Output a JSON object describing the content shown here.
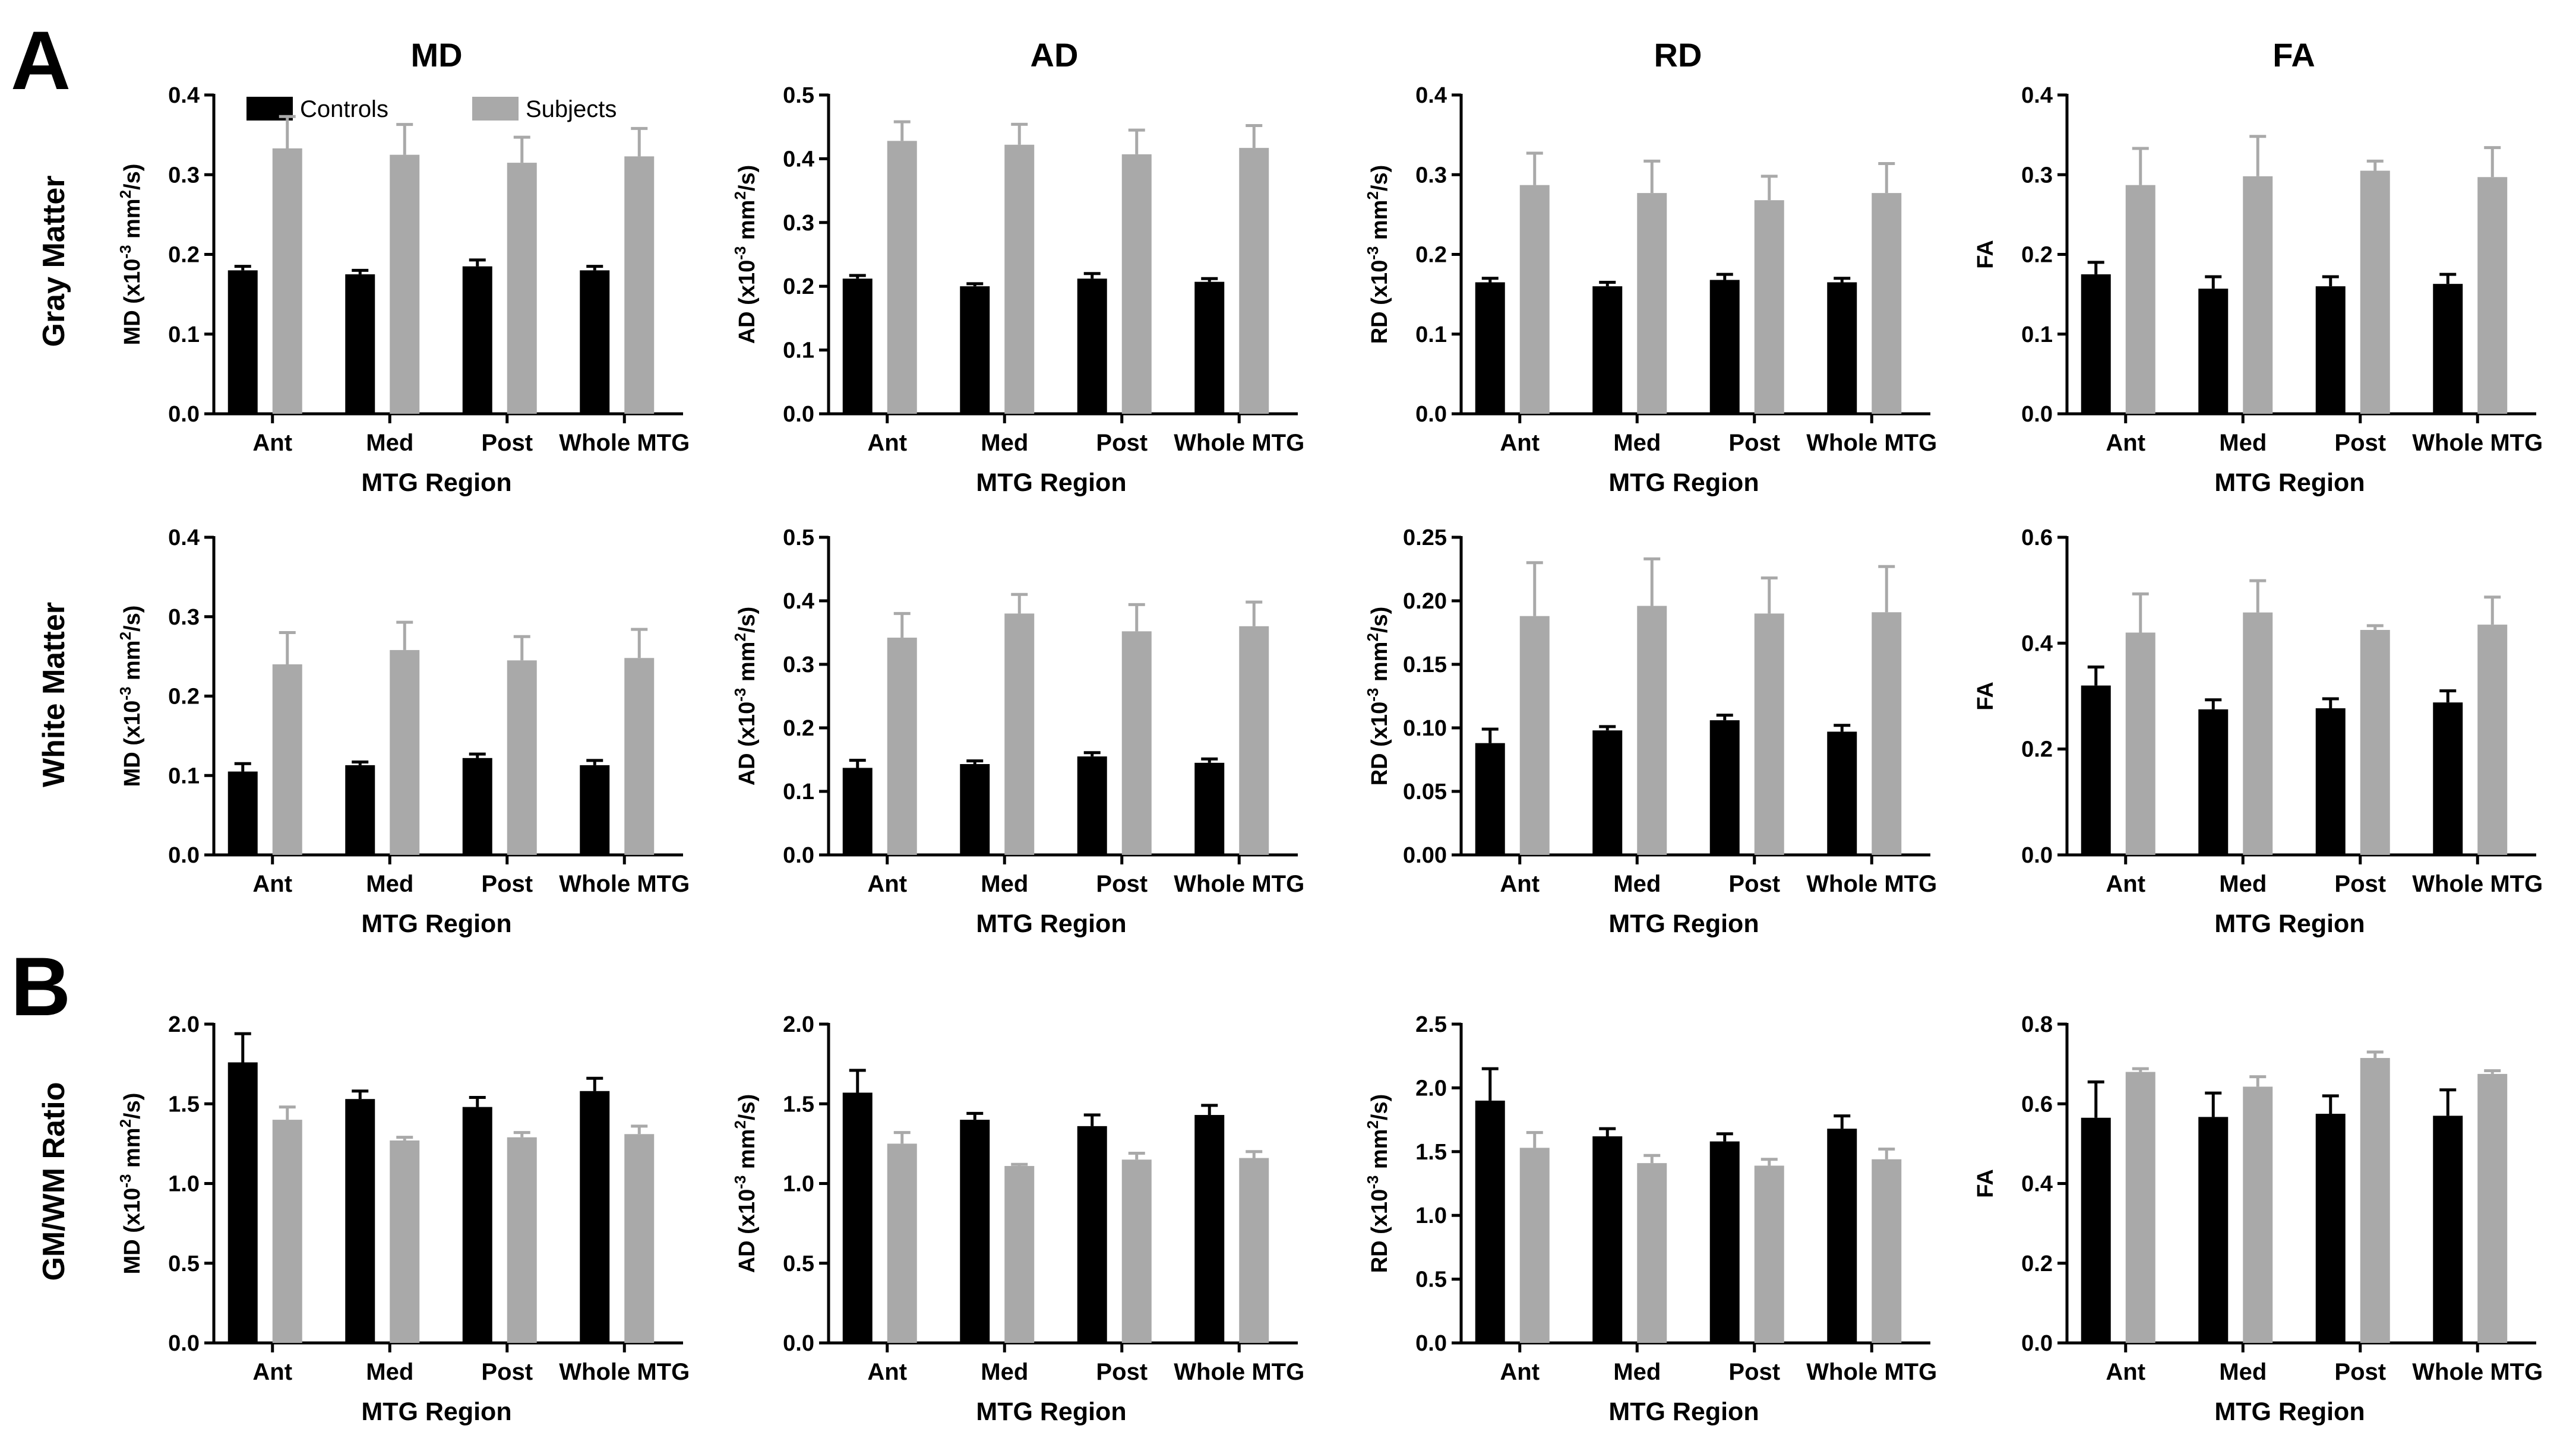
{
  "figure": {
    "panel_labels": [
      "A",
      "B"
    ],
    "column_titles": [
      "MD",
      "AD",
      "RD",
      "FA"
    ],
    "row_titles": [
      "Gray Matter",
      "White Matter",
      "GM/WM Ratio"
    ],
    "legend": [
      {
        "label": "Controls",
        "color": "#000000"
      },
      {
        "label": "Subjects",
        "color": "#a9a9a9"
      }
    ],
    "colors": {
      "controls": "#000000",
      "subjects": "#a9a9a9"
    }
  },
  "chart_data": [
    {
      "type": "bar",
      "row": 0,
      "col": 0,
      "title": "MD",
      "xlabel": "MTG Region",
      "ylabel": "MD (x10^-3 mm^2/s)",
      "categories": [
        "Ant",
        "Med",
        "Post",
        "Whole MTG"
      ],
      "ylim": [
        0,
        0.4
      ],
      "yticks": [
        "0.0",
        "0.1",
        "0.2",
        "0.3",
        "0.4"
      ],
      "ytick_values": [
        0,
        0.1,
        0.2,
        0.3,
        0.4
      ],
      "series": [
        {
          "name": "Controls",
          "values": [
            0.18,
            0.175,
            0.185,
            0.18
          ],
          "errors": [
            0.005,
            0.005,
            0.008,
            0.005
          ]
        },
        {
          "name": "Subjects",
          "values": [
            0.333,
            0.325,
            0.315,
            0.323
          ],
          "errors": [
            0.04,
            0.038,
            0.032,
            0.035
          ]
        }
      ]
    },
    {
      "type": "bar",
      "row": 0,
      "col": 1,
      "title": "AD",
      "xlabel": "MTG Region",
      "ylabel": "AD (x10^-3 mm^2/s)",
      "categories": [
        "Ant",
        "Med",
        "Post",
        "Whole MTG"
      ],
      "ylim": [
        0,
        0.5
      ],
      "yticks": [
        "0.0",
        "0.1",
        "0.2",
        "0.3",
        "0.4",
        "0.5"
      ],
      "ytick_values": [
        0,
        0.1,
        0.2,
        0.3,
        0.4,
        0.5
      ],
      "series": [
        {
          "name": "Controls",
          "values": [
            0.212,
            0.2,
            0.212,
            0.207
          ],
          "errors": [
            0.005,
            0.004,
            0.008,
            0.005
          ]
        },
        {
          "name": "Subjects",
          "values": [
            0.428,
            0.422,
            0.407,
            0.417
          ],
          "errors": [
            0.03,
            0.032,
            0.038,
            0.035
          ]
        }
      ]
    },
    {
      "type": "bar",
      "row": 0,
      "col": 2,
      "title": "RD",
      "xlabel": "MTG Region",
      "ylabel": "RD (x10^-3 mm^2/s)",
      "categories": [
        "Ant",
        "Med",
        "Post",
        "Whole MTG"
      ],
      "ylim": [
        0,
        0.4
      ],
      "yticks": [
        "0.0",
        "0.1",
        "0.2",
        "0.3",
        "0.4"
      ],
      "ytick_values": [
        0,
        0.1,
        0.2,
        0.3,
        0.4
      ],
      "series": [
        {
          "name": "Controls",
          "values": [
            0.165,
            0.16,
            0.168,
            0.165
          ],
          "errors": [
            0.005,
            0.005,
            0.007,
            0.005
          ]
        },
        {
          "name": "Subjects",
          "values": [
            0.287,
            0.277,
            0.268,
            0.277
          ],
          "errors": [
            0.04,
            0.04,
            0.03,
            0.037
          ]
        }
      ]
    },
    {
      "type": "bar",
      "row": 0,
      "col": 3,
      "title": "FA",
      "xlabel": "MTG Region",
      "ylabel": "FA",
      "categories": [
        "Ant",
        "Med",
        "Post",
        "Whole MTG"
      ],
      "ylim": [
        0,
        0.4
      ],
      "yticks": [
        "0.0",
        "0.1",
        "0.2",
        "0.3",
        "0.4"
      ],
      "ytick_values": [
        0,
        0.1,
        0.2,
        0.3,
        0.4
      ],
      "series": [
        {
          "name": "Controls",
          "values": [
            0.175,
            0.157,
            0.16,
            0.163
          ],
          "errors": [
            0.015,
            0.015,
            0.012,
            0.012
          ]
        },
        {
          "name": "Subjects",
          "values": [
            0.287,
            0.298,
            0.305,
            0.297
          ],
          "errors": [
            0.046,
            0.05,
            0.012,
            0.037
          ]
        }
      ]
    },
    {
      "type": "bar",
      "row": 1,
      "col": 0,
      "title": "",
      "xlabel": "MTG Region",
      "ylabel": "MD (x10^-3 mm^2/s)",
      "categories": [
        "Ant",
        "Med",
        "Post",
        "Whole MTG"
      ],
      "ylim": [
        0,
        0.4
      ],
      "yticks": [
        "0.0",
        "0.1",
        "0.2",
        "0.3",
        "0.4"
      ],
      "ytick_values": [
        0,
        0.1,
        0.2,
        0.3,
        0.4
      ],
      "series": [
        {
          "name": "Controls",
          "values": [
            0.105,
            0.113,
            0.122,
            0.113
          ],
          "errors": [
            0.01,
            0.004,
            0.005,
            0.006
          ]
        },
        {
          "name": "Subjects",
          "values": [
            0.24,
            0.258,
            0.245,
            0.248
          ],
          "errors": [
            0.04,
            0.035,
            0.03,
            0.036
          ]
        }
      ]
    },
    {
      "type": "bar",
      "row": 1,
      "col": 1,
      "title": "",
      "xlabel": "MTG Region",
      "ylabel": "AD (x10^-3 mm^2/s)",
      "categories": [
        "Ant",
        "Med",
        "Post",
        "Whole MTG"
      ],
      "ylim": [
        0,
        0.5
      ],
      "yticks": [
        "0.0",
        "0.1",
        "0.2",
        "0.3",
        "0.4",
        "0.5"
      ],
      "ytick_values": [
        0,
        0.1,
        0.2,
        0.3,
        0.4,
        0.5
      ],
      "series": [
        {
          "name": "Controls",
          "values": [
            0.137,
            0.143,
            0.155,
            0.145
          ],
          "errors": [
            0.012,
            0.005,
            0.006,
            0.006
          ]
        },
        {
          "name": "Subjects",
          "values": [
            0.342,
            0.38,
            0.352,
            0.36
          ],
          "errors": [
            0.038,
            0.03,
            0.042,
            0.038
          ]
        }
      ]
    },
    {
      "type": "bar",
      "row": 1,
      "col": 2,
      "title": "",
      "xlabel": "MTG Region",
      "ylabel": "RD (x10^-3 mm^2/s)",
      "categories": [
        "Ant",
        "Med",
        "Post",
        "Whole MTG"
      ],
      "ylim": [
        0,
        0.25
      ],
      "yticks": [
        "0.00",
        "0.05",
        "0.10",
        "0.15",
        "0.20",
        "0.25"
      ],
      "ytick_values": [
        0,
        0.05,
        0.1,
        0.15,
        0.2,
        0.25
      ],
      "series": [
        {
          "name": "Controls",
          "values": [
            0.088,
            0.098,
            0.106,
            0.097
          ],
          "errors": [
            0.011,
            0.003,
            0.004,
            0.005
          ]
        },
        {
          "name": "Subjects",
          "values": [
            0.188,
            0.196,
            0.19,
            0.191
          ],
          "errors": [
            0.042,
            0.037,
            0.028,
            0.036
          ]
        }
      ]
    },
    {
      "type": "bar",
      "row": 1,
      "col": 3,
      "title": "",
      "xlabel": "MTG Region",
      "ylabel": "FA",
      "categories": [
        "Ant",
        "Med",
        "Post",
        "Whole MTG"
      ],
      "ylim": [
        0,
        0.6
      ],
      "yticks": [
        "0.0",
        "0.2",
        "0.4",
        "0.6"
      ],
      "ytick_values": [
        0,
        0.2,
        0.4,
        0.6
      ],
      "series": [
        {
          "name": "Controls",
          "values": [
            0.32,
            0.275,
            0.277,
            0.288
          ],
          "errors": [
            0.035,
            0.018,
            0.018,
            0.022
          ]
        },
        {
          "name": "Subjects",
          "values": [
            0.42,
            0.458,
            0.425,
            0.435
          ],
          "errors": [
            0.073,
            0.06,
            0.008,
            0.052
          ]
        }
      ]
    },
    {
      "type": "bar",
      "row": 2,
      "col": 0,
      "title": "",
      "xlabel": "MTG Region",
      "ylabel": "MD (x10^-3 mm^2/s)",
      "categories": [
        "Ant",
        "Med",
        "Post",
        "Whole MTG"
      ],
      "ylim": [
        0,
        2.0
      ],
      "yticks": [
        "0.0",
        "0.5",
        "1.0",
        "1.5",
        "2.0"
      ],
      "ytick_values": [
        0,
        0.5,
        1.0,
        1.5,
        2.0
      ],
      "series": [
        {
          "name": "Controls",
          "values": [
            1.76,
            1.53,
            1.48,
            1.58
          ],
          "errors": [
            0.18,
            0.05,
            0.06,
            0.08
          ]
        },
        {
          "name": "Subjects",
          "values": [
            1.4,
            1.27,
            1.29,
            1.31
          ],
          "errors": [
            0.08,
            0.02,
            0.03,
            0.05
          ]
        }
      ]
    },
    {
      "type": "bar",
      "row": 2,
      "col": 1,
      "title": "",
      "xlabel": "MTG Region",
      "ylabel": "AD (x10^-3 mm^2/s)",
      "categories": [
        "Ant",
        "Med",
        "Post",
        "Whole MTG"
      ],
      "ylim": [
        0,
        2.0
      ],
      "yticks": [
        "0.0",
        "0.5",
        "1.0",
        "1.5",
        "2.0"
      ],
      "ytick_values": [
        0,
        0.5,
        1.0,
        1.5,
        2.0
      ],
      "series": [
        {
          "name": "Controls",
          "values": [
            1.57,
            1.4,
            1.36,
            1.43
          ],
          "errors": [
            0.14,
            0.04,
            0.07,
            0.06
          ]
        },
        {
          "name": "Subjects",
          "values": [
            1.25,
            1.11,
            1.15,
            1.16
          ],
          "errors": [
            0.07,
            0.01,
            0.04,
            0.04
          ]
        }
      ]
    },
    {
      "type": "bar",
      "row": 2,
      "col": 2,
      "title": "",
      "xlabel": "MTG Region",
      "ylabel": "RD (x10^-3 mm^2/s)",
      "categories": [
        "Ant",
        "Med",
        "Post",
        "Whole MTG"
      ],
      "ylim": [
        0,
        2.5
      ],
      "yticks": [
        "0.0",
        "0.5",
        "1.0",
        "1.5",
        "2.0",
        "2.5"
      ],
      "ytick_values": [
        0,
        0.5,
        1.0,
        1.5,
        2.0,
        2.5
      ],
      "series": [
        {
          "name": "Controls",
          "values": [
            1.9,
            1.62,
            1.58,
            1.68
          ],
          "errors": [
            0.25,
            0.06,
            0.06,
            0.1
          ]
        },
        {
          "name": "Subjects",
          "values": [
            1.53,
            1.41,
            1.39,
            1.44
          ],
          "errors": [
            0.12,
            0.06,
            0.05,
            0.08
          ]
        }
      ]
    },
    {
      "type": "bar",
      "row": 2,
      "col": 3,
      "title": "",
      "xlabel": "MTG Region",
      "ylabel": "FA",
      "categories": [
        "Ant",
        "Med",
        "Post",
        "Whole MTG"
      ],
      "ylim": [
        0,
        0.8
      ],
      "yticks": [
        "0.0",
        "0.2",
        "0.4",
        "0.6",
        "0.8"
      ],
      "ytick_values": [
        0,
        0.2,
        0.4,
        0.6,
        0.8
      ],
      "series": [
        {
          "name": "Controls",
          "values": [
            0.565,
            0.567,
            0.575,
            0.57
          ],
          "errors": [
            0.09,
            0.06,
            0.045,
            0.065
          ]
        },
        {
          "name": "Subjects",
          "values": [
            0.68,
            0.643,
            0.715,
            0.675
          ],
          "errors": [
            0.008,
            0.025,
            0.015,
            0.008
          ]
        }
      ]
    }
  ]
}
